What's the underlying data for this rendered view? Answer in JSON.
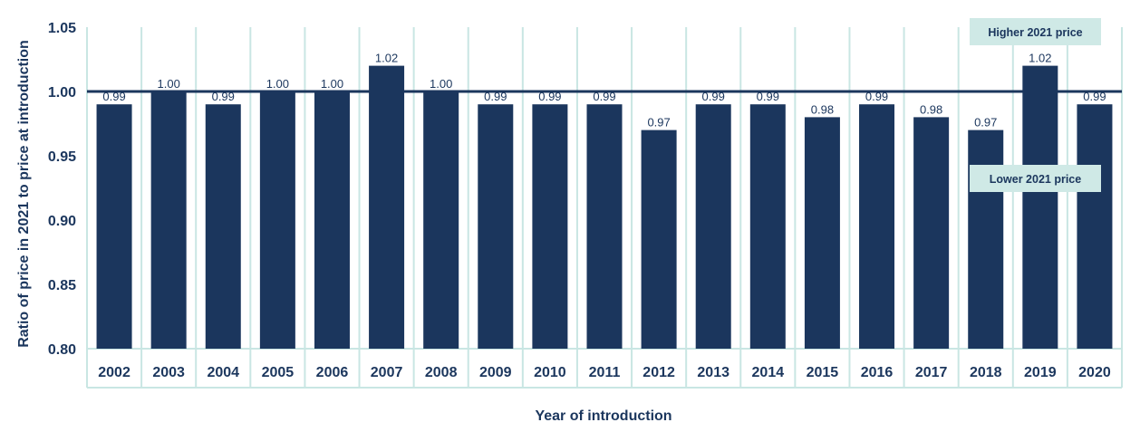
{
  "chart_data": {
    "type": "bar",
    "xlabel": "Year of introduction",
    "ylabel": "Ratio of price in 2021 to price at introduction",
    "categories": [
      "2002",
      "2003",
      "2004",
      "2005",
      "2006",
      "2007",
      "2008",
      "2009",
      "2010",
      "2011",
      "2012",
      "2013",
      "2014",
      "2015",
      "2016",
      "2017",
      "2018",
      "2019",
      "2020"
    ],
    "values": [
      0.99,
      1.0,
      0.99,
      1.0,
      1.0,
      1.02,
      1.0,
      0.99,
      0.99,
      0.99,
      0.97,
      0.99,
      0.99,
      0.98,
      0.99,
      0.98,
      0.97,
      1.02,
      0.99
    ],
    "value_labels": [
      "0.99",
      "1.00",
      "0.99",
      "1.00",
      "1.00",
      "1.02",
      "1.00",
      "0.99",
      "0.99",
      "0.99",
      "0.97",
      "0.99",
      "0.99",
      "0.98",
      "0.99",
      "0.98",
      "0.97",
      "1.02",
      "0.99"
    ],
    "ylim": [
      0.8,
      1.05
    ],
    "yticks": [
      "0.80",
      "0.85",
      "0.90",
      "0.95",
      "1.00",
      "1.05"
    ],
    "reference_line": 1.0,
    "annotations": {
      "upper": "Higher 2021 price",
      "lower": "Lower 2021 price"
    },
    "colors": {
      "bar": "#1b365d",
      "grid": "#c9e6e3",
      "annotation_bg": "#cfe9e6",
      "text": "#1b365d"
    },
    "grid": true
  }
}
